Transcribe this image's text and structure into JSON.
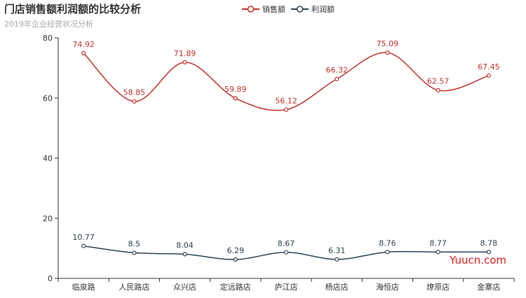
{
  "title": "门店销售额利润额的比较分析",
  "subtitle": "2019年企业经营状况分析",
  "watermark": "Yuucn.com",
  "chart_data": {
    "type": "line",
    "categories": [
      "临泉路",
      "人民路店",
      "众兴店",
      "定远路店",
      "庐江店",
      "杨店店",
      "海恒店",
      "燎原店",
      "金寨店"
    ],
    "series": [
      {
        "name": "销售额",
        "color": "#c23531",
        "values": [
          74.92,
          58.85,
          71.89,
          59.89,
          56.12,
          66.32,
          75.09,
          62.57,
          67.45
        ]
      },
      {
        "name": "利润额",
        "color": "#2f4554",
        "values": [
          10.77,
          8.5,
          8.04,
          6.29,
          8.67,
          6.31,
          8.76,
          8.77,
          8.78
        ]
      }
    ],
    "ylim": [
      0,
      80
    ],
    "yticks": [
      0,
      20,
      40,
      60,
      80
    ],
    "smooth": true,
    "legend_position": "top-center"
  }
}
